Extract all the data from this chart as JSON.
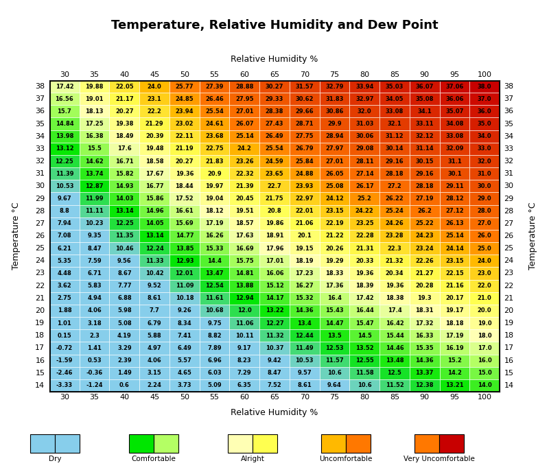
{
  "title": "Temperature, Relative Humidity and Dew Point",
  "xlabel": "Relative Humidity %",
  "ylabel": "Temperature °C",
  "rh_values": [
    30,
    35,
    40,
    45,
    50,
    55,
    60,
    65,
    70,
    75,
    80,
    85,
    90,
    95,
    100
  ],
  "temp_values": [
    38,
    37,
    36,
    35,
    34,
    33,
    32,
    31,
    30,
    29,
    28,
    27,
    26,
    25,
    24,
    23,
    22,
    21,
    20,
    19,
    18,
    17,
    16,
    15,
    14
  ],
  "dew_points": [
    [
      17.42,
      19.88,
      22.05,
      24,
      25.77,
      27.39,
      28.88,
      30.27,
      31.57,
      32.79,
      33.94,
      35.03,
      36.07,
      37.06,
      38
    ],
    [
      16.56,
      19.01,
      21.17,
      23.1,
      24.85,
      26.46,
      27.95,
      29.33,
      30.62,
      31.83,
      32.97,
      34.05,
      35.08,
      36.06,
      37
    ],
    [
      15.7,
      18.13,
      20.27,
      22.2,
      23.94,
      25.54,
      27.01,
      28.38,
      29.66,
      30.86,
      32,
      33.08,
      34.1,
      35.07,
      36
    ],
    [
      14.84,
      17.25,
      19.38,
      21.29,
      23.02,
      24.61,
      26.07,
      27.43,
      28.71,
      29.9,
      31.03,
      32.1,
      33.11,
      34.08,
      35
    ],
    [
      13.98,
      16.38,
      18.49,
      20.39,
      22.11,
      23.68,
      25.14,
      26.49,
      27.75,
      28.94,
      30.06,
      31.12,
      32.12,
      33.08,
      34
    ],
    [
      13.12,
      15.5,
      17.6,
      19.48,
      21.19,
      22.75,
      24.2,
      25.54,
      26.79,
      27.97,
      29.08,
      30.14,
      31.14,
      32.09,
      33
    ],
    [
      12.25,
      14.62,
      16.71,
      18.58,
      20.27,
      21.83,
      23.26,
      24.59,
      25.84,
      27.01,
      28.11,
      29.16,
      30.15,
      31.1,
      32
    ],
    [
      11.39,
      13.74,
      15.82,
      17.67,
      19.36,
      20.9,
      22.32,
      23.65,
      24.88,
      26.05,
      27.14,
      28.18,
      29.16,
      30.1,
      31
    ],
    [
      10.53,
      12.87,
      14.93,
      16.77,
      18.44,
      19.97,
      21.39,
      22.7,
      23.93,
      25.08,
      26.17,
      27.2,
      28.18,
      29.11,
      30
    ],
    [
      9.67,
      11.99,
      14.03,
      15.86,
      17.52,
      19.04,
      20.45,
      21.75,
      22.97,
      24.12,
      25.2,
      26.22,
      27.19,
      28.12,
      29
    ],
    [
      8.8,
      11.11,
      13.14,
      14.96,
      16.61,
      18.12,
      19.51,
      20.8,
      22.01,
      23.15,
      24.22,
      25.24,
      26.2,
      27.12,
      28
    ],
    [
      7.94,
      10.23,
      12.25,
      14.05,
      15.69,
      17.19,
      18.57,
      19.86,
      21.06,
      22.19,
      23.25,
      24.26,
      25.22,
      26.13,
      27
    ],
    [
      7.08,
      9.35,
      11.35,
      13.14,
      14.77,
      16.26,
      17.63,
      18.91,
      20.1,
      21.22,
      22.28,
      23.28,
      24.23,
      25.14,
      26
    ],
    [
      6.21,
      8.47,
      10.46,
      12.24,
      13.85,
      15.33,
      16.69,
      17.96,
      19.15,
      20.26,
      21.31,
      22.3,
      23.24,
      24.14,
      25
    ],
    [
      5.35,
      7.59,
      9.56,
      11.33,
      12.93,
      14.4,
      15.75,
      17.01,
      18.19,
      19.29,
      20.33,
      21.32,
      22.26,
      23.15,
      24
    ],
    [
      4.48,
      6.71,
      8.67,
      10.42,
      12.01,
      13.47,
      14.81,
      16.06,
      17.23,
      18.33,
      19.36,
      20.34,
      21.27,
      22.15,
      23
    ],
    [
      3.62,
      5.83,
      7.77,
      9.52,
      11.09,
      12.54,
      13.88,
      15.12,
      16.27,
      17.36,
      18.39,
      19.36,
      20.28,
      21.16,
      22
    ],
    [
      2.75,
      4.94,
      6.88,
      8.61,
      10.18,
      11.61,
      12.94,
      14.17,
      15.32,
      16.4,
      17.42,
      18.38,
      19.3,
      20.17,
      21
    ],
    [
      1.88,
      4.06,
      5.98,
      7.7,
      9.26,
      10.68,
      12,
      13.22,
      14.36,
      15.43,
      16.44,
      17.4,
      18.31,
      19.17,
      20
    ],
    [
      1.01,
      3.18,
      5.08,
      6.79,
      8.34,
      9.75,
      11.06,
      12.27,
      13.4,
      14.47,
      15.47,
      16.42,
      17.32,
      18.18,
      19
    ],
    [
      0.15,
      2.3,
      4.19,
      5.88,
      7.41,
      8.82,
      10.11,
      11.32,
      12.44,
      13.5,
      14.5,
      15.44,
      16.33,
      17.19,
      18
    ],
    [
      -0.72,
      1.41,
      3.29,
      4.97,
      6.49,
      7.89,
      9.17,
      10.37,
      11.49,
      12.53,
      13.52,
      14.46,
      15.35,
      16.19,
      17
    ],
    [
      -1.59,
      0.53,
      2.39,
      4.06,
      5.57,
      6.96,
      8.23,
      9.42,
      10.53,
      11.57,
      12.55,
      13.48,
      14.36,
      15.2,
      16
    ],
    [
      -2.46,
      -0.36,
      1.49,
      3.15,
      4.65,
      6.03,
      7.29,
      8.47,
      9.57,
      10.6,
      11.58,
      12.5,
      13.37,
      14.2,
      15
    ],
    [
      -3.33,
      -1.24,
      0.6,
      2.24,
      3.73,
      5.09,
      6.35,
      7.52,
      8.61,
      9.64,
      10.6,
      11.52,
      12.38,
      13.21,
      14
    ]
  ],
  "color_stops": [
    [
      -5,
      [
        135,
        206,
        235
      ]
    ],
    [
      10,
      [
        135,
        206,
        235
      ]
    ],
    [
      13,
      [
        0,
        230,
        0
      ]
    ],
    [
      16,
      [
        180,
        255,
        100
      ]
    ],
    [
      18,
      [
        255,
        255,
        180
      ]
    ],
    [
      21,
      [
        255,
        255,
        80
      ]
    ],
    [
      24,
      [
        255,
        185,
        0
      ]
    ],
    [
      26,
      [
        255,
        120,
        0
      ]
    ],
    [
      38,
      [
        200,
        0,
        0
      ]
    ]
  ],
  "legend": [
    {
      "label": "Dry",
      "colors": [
        "#87CEEB",
        "#87CEEB"
      ]
    },
    {
      "label": "Comfortable",
      "colors": [
        "#00E600",
        "#B4FF64"
      ]
    },
    {
      "label": "Alright",
      "colors": [
        "#FFFFB4",
        "#FFFF50"
      ]
    },
    {
      "label": "Uncomfortable",
      "colors": [
        "#FFB900",
        "#FF7800"
      ]
    },
    {
      "label": "Very Uncomfortable",
      "colors": [
        "#FF7800",
        "#C80000"
      ]
    }
  ],
  "title_fontsize": 13,
  "label_fontsize": 9,
  "tick_fontsize": 8,
  "cell_fontsize": 6
}
